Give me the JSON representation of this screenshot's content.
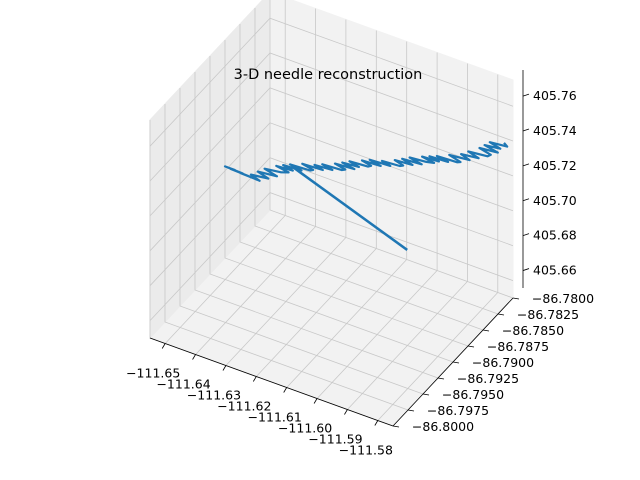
{
  "chart_data": {
    "type": "line3d",
    "title": "3-D needle reconstruction",
    "xlabel": "",
    "ylabel": "",
    "zlabel": "",
    "grid": true,
    "line_color": "#1f77b4",
    "xlim": [
      -111.655,
      -111.575
    ],
    "ylim": [
      -86.8,
      -86.78
    ],
    "zlim": [
      405.65,
      405.775
    ],
    "x_ticks": [
      "−111.65",
      "−111.64",
      "−111.63",
      "−111.62",
      "−111.61",
      "−111.60",
      "−111.59",
      "−111.58"
    ],
    "y_ticks": [
      "−86.8000",
      "−86.7975",
      "−86.7950",
      "−86.7925",
      "−86.7900",
      "−86.7875",
      "−86.7850",
      "−86.7825",
      "−86.7800"
    ],
    "z_ticks": [
      "405.66",
      "405.68",
      "405.70",
      "405.72",
      "405.74",
      "405.76"
    ],
    "series": [
      {
        "path_x": [
          -111.652,
          -111.645,
          -111.638,
          -111.63,
          -111.622,
          -111.614,
          -111.606,
          -111.598,
          -111.59,
          -111.582,
          -111.576
        ],
        "path_y": [
          -86.7882,
          -86.788,
          -86.787,
          -86.7865,
          -86.7855,
          -86.7848,
          -86.7838,
          -86.783,
          -86.7822,
          -86.7815,
          -86.781
        ],
        "path_z": [
          405.706,
          405.704,
          405.71,
          405.714,
          405.716,
          405.72,
          405.722,
          405.726,
          405.728,
          405.735,
          405.742
        ],
        "tail_x": [
          -111.636,
          -111.596
        ],
        "tail_y": [
          -86.7855,
          -86.787
        ],
        "tail_z": [
          405.706,
          405.69
        ]
      }
    ]
  }
}
